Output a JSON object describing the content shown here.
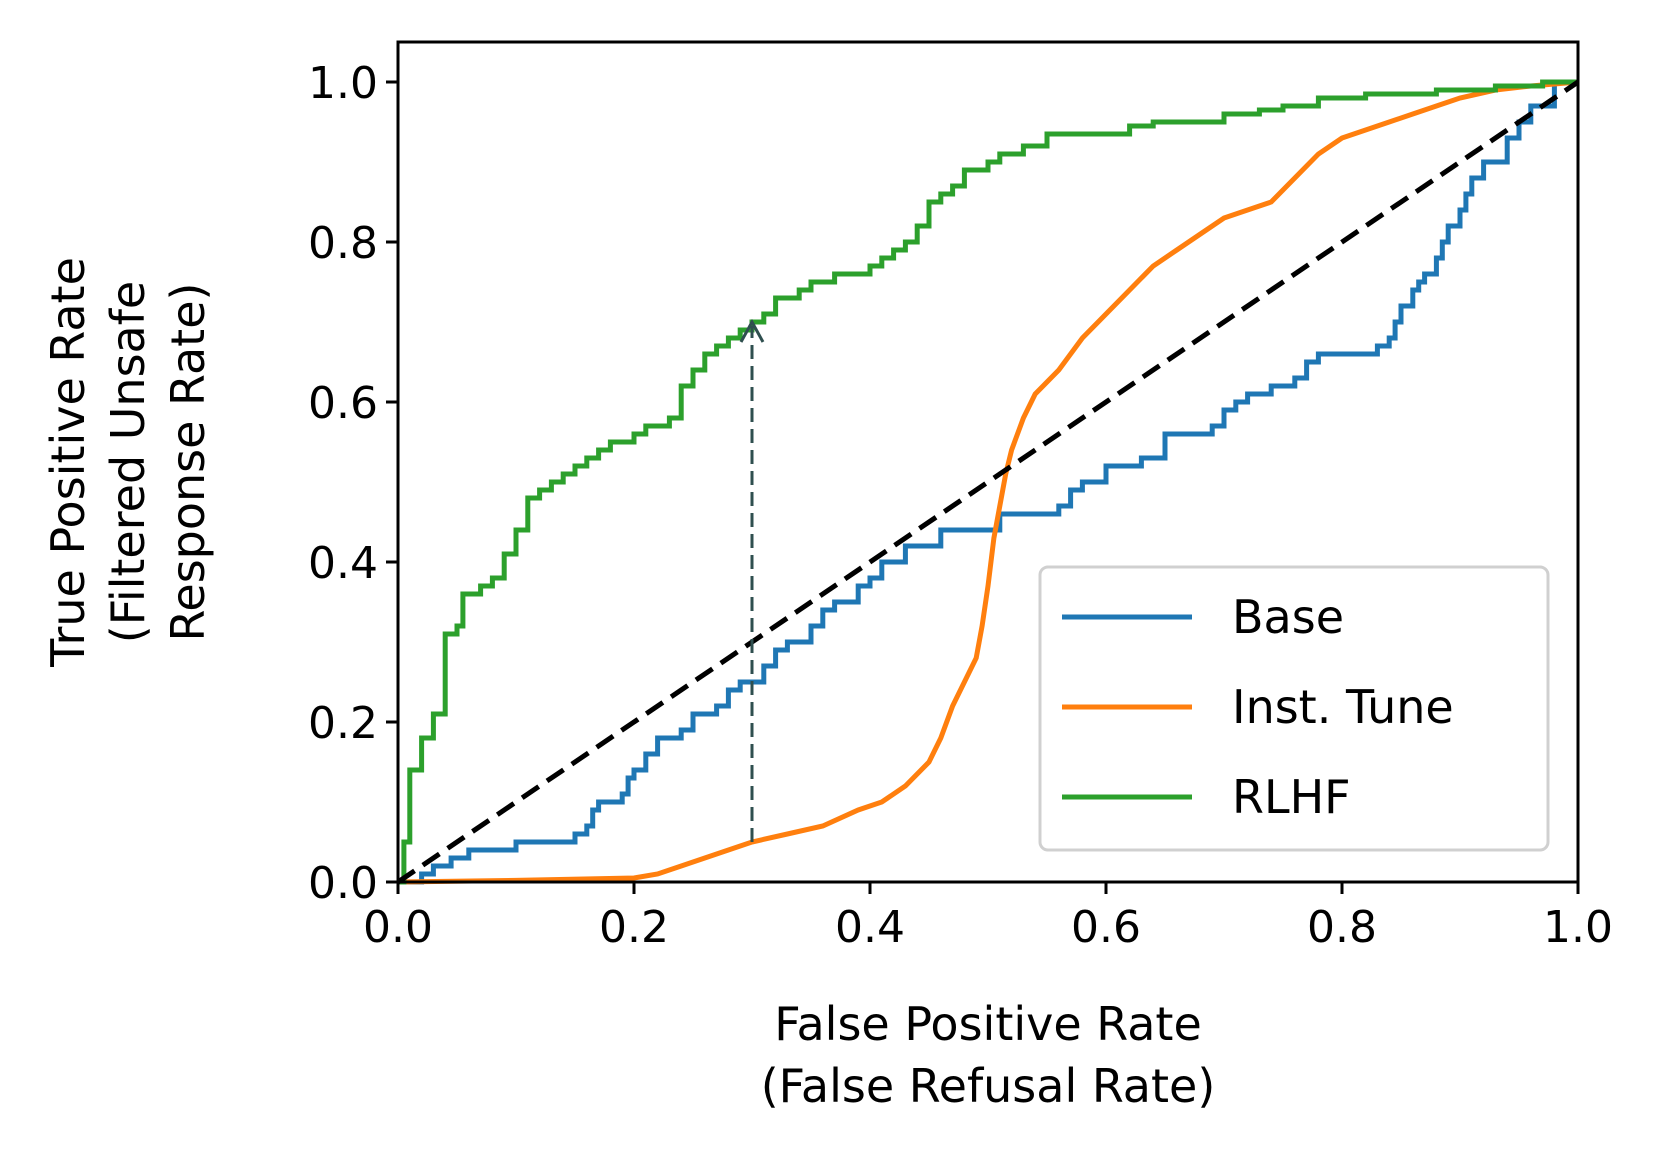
{
  "chart_data": {
    "type": "line",
    "title": "",
    "xlabel": [
      "False Positive Rate",
      "(False Refusal Rate)"
    ],
    "ylabel": [
      "True Positive Rate",
      "(Filtered Unsafe",
      "Response Rate)"
    ],
    "xlim": [
      0,
      1
    ],
    "ylim": [
      0,
      1.05
    ],
    "xticks": [
      "0.0",
      "0.2",
      "0.4",
      "0.6",
      "0.8",
      "1.0"
    ],
    "yticks": [
      "0.0",
      "0.2",
      "0.4",
      "0.6",
      "0.8",
      "1.0"
    ],
    "grid": false,
    "legend_position": "lower-right",
    "series": [
      {
        "name": "Base",
        "color": "#1f77b4",
        "step": true,
        "points": [
          [
            0,
            0
          ],
          [
            0.02,
            0
          ],
          [
            0.02,
            0.01
          ],
          [
            0.03,
            0.01
          ],
          [
            0.03,
            0.02
          ],
          [
            0.045,
            0.02
          ],
          [
            0.045,
            0.03
          ],
          [
            0.06,
            0.03
          ],
          [
            0.06,
            0.04
          ],
          [
            0.1,
            0.04
          ],
          [
            0.1,
            0.05
          ],
          [
            0.15,
            0.05
          ],
          [
            0.15,
            0.06
          ],
          [
            0.16,
            0.06
          ],
          [
            0.16,
            0.07
          ],
          [
            0.165,
            0.07
          ],
          [
            0.165,
            0.09
          ],
          [
            0.17,
            0.09
          ],
          [
            0.17,
            0.1
          ],
          [
            0.19,
            0.1
          ],
          [
            0.19,
            0.11
          ],
          [
            0.195,
            0.11
          ],
          [
            0.195,
            0.13
          ],
          [
            0.2,
            0.13
          ],
          [
            0.2,
            0.14
          ],
          [
            0.21,
            0.14
          ],
          [
            0.21,
            0.16
          ],
          [
            0.22,
            0.16
          ],
          [
            0.22,
            0.18
          ],
          [
            0.24,
            0.18
          ],
          [
            0.24,
            0.19
          ],
          [
            0.25,
            0.19
          ],
          [
            0.25,
            0.21
          ],
          [
            0.27,
            0.21
          ],
          [
            0.27,
            0.22
          ],
          [
            0.28,
            0.22
          ],
          [
            0.28,
            0.24
          ],
          [
            0.29,
            0.24
          ],
          [
            0.29,
            0.25
          ],
          [
            0.31,
            0.25
          ],
          [
            0.31,
            0.27
          ],
          [
            0.32,
            0.27
          ],
          [
            0.32,
            0.29
          ],
          [
            0.33,
            0.29
          ],
          [
            0.33,
            0.3
          ],
          [
            0.35,
            0.3
          ],
          [
            0.35,
            0.32
          ],
          [
            0.36,
            0.32
          ],
          [
            0.36,
            0.34
          ],
          [
            0.37,
            0.34
          ],
          [
            0.37,
            0.35
          ],
          [
            0.39,
            0.35
          ],
          [
            0.39,
            0.37
          ],
          [
            0.4,
            0.37
          ],
          [
            0.4,
            0.38
          ],
          [
            0.41,
            0.38
          ],
          [
            0.41,
            0.4
          ],
          [
            0.43,
            0.4
          ],
          [
            0.43,
            0.42
          ],
          [
            0.46,
            0.42
          ],
          [
            0.46,
            0.44
          ],
          [
            0.51,
            0.44
          ],
          [
            0.51,
            0.46
          ],
          [
            0.56,
            0.46
          ],
          [
            0.56,
            0.47
          ],
          [
            0.57,
            0.47
          ],
          [
            0.57,
            0.49
          ],
          [
            0.58,
            0.49
          ],
          [
            0.58,
            0.5
          ],
          [
            0.6,
            0.5
          ],
          [
            0.6,
            0.52
          ],
          [
            0.63,
            0.52
          ],
          [
            0.63,
            0.53
          ],
          [
            0.65,
            0.53
          ],
          [
            0.65,
            0.56
          ],
          [
            0.69,
            0.56
          ],
          [
            0.69,
            0.57
          ],
          [
            0.7,
            0.57
          ],
          [
            0.7,
            0.59
          ],
          [
            0.71,
            0.59
          ],
          [
            0.71,
            0.6
          ],
          [
            0.72,
            0.6
          ],
          [
            0.72,
            0.61
          ],
          [
            0.74,
            0.61
          ],
          [
            0.74,
            0.62
          ],
          [
            0.76,
            0.62
          ],
          [
            0.76,
            0.63
          ],
          [
            0.77,
            0.63
          ],
          [
            0.77,
            0.65
          ],
          [
            0.78,
            0.65
          ],
          [
            0.78,
            0.66
          ],
          [
            0.83,
            0.66
          ],
          [
            0.83,
            0.67
          ],
          [
            0.84,
            0.67
          ],
          [
            0.84,
            0.68
          ],
          [
            0.845,
            0.68
          ],
          [
            0.845,
            0.7
          ],
          [
            0.85,
            0.7
          ],
          [
            0.85,
            0.72
          ],
          [
            0.86,
            0.72
          ],
          [
            0.86,
            0.74
          ],
          [
            0.865,
            0.74
          ],
          [
            0.865,
            0.75
          ],
          [
            0.87,
            0.75
          ],
          [
            0.87,
            0.76
          ],
          [
            0.88,
            0.76
          ],
          [
            0.88,
            0.78
          ],
          [
            0.885,
            0.78
          ],
          [
            0.885,
            0.8
          ],
          [
            0.89,
            0.8
          ],
          [
            0.89,
            0.82
          ],
          [
            0.9,
            0.82
          ],
          [
            0.9,
            0.84
          ],
          [
            0.905,
            0.84
          ],
          [
            0.905,
            0.86
          ],
          [
            0.91,
            0.86
          ],
          [
            0.91,
            0.88
          ],
          [
            0.92,
            0.88
          ],
          [
            0.92,
            0.9
          ],
          [
            0.94,
            0.9
          ],
          [
            0.94,
            0.93
          ],
          [
            0.95,
            0.93
          ],
          [
            0.95,
            0.95
          ],
          [
            0.96,
            0.95
          ],
          [
            0.96,
            0.97
          ],
          [
            0.98,
            0.97
          ],
          [
            0.98,
            1.0
          ],
          [
            1.0,
            1.0
          ]
        ]
      },
      {
        "name": "Inst. Tune",
        "color": "#ff7f0e",
        "step": false,
        "points": [
          [
            0,
            0
          ],
          [
            0.1,
            0.002
          ],
          [
            0.2,
            0.005
          ],
          [
            0.22,
            0.01
          ],
          [
            0.24,
            0.02
          ],
          [
            0.26,
            0.03
          ],
          [
            0.28,
            0.04
          ],
          [
            0.3,
            0.05
          ],
          [
            0.33,
            0.06
          ],
          [
            0.36,
            0.07
          ],
          [
            0.39,
            0.09
          ],
          [
            0.41,
            0.1
          ],
          [
            0.43,
            0.12
          ],
          [
            0.45,
            0.15
          ],
          [
            0.46,
            0.18
          ],
          [
            0.47,
            0.22
          ],
          [
            0.48,
            0.25
          ],
          [
            0.49,
            0.28
          ],
          [
            0.495,
            0.32
          ],
          [
            0.5,
            0.37
          ],
          [
            0.505,
            0.43
          ],
          [
            0.51,
            0.47
          ],
          [
            0.515,
            0.51
          ],
          [
            0.52,
            0.54
          ],
          [
            0.53,
            0.58
          ],
          [
            0.54,
            0.61
          ],
          [
            0.56,
            0.64
          ],
          [
            0.58,
            0.68
          ],
          [
            0.6,
            0.71
          ],
          [
            0.62,
            0.74
          ],
          [
            0.64,
            0.77
          ],
          [
            0.66,
            0.79
          ],
          [
            0.68,
            0.81
          ],
          [
            0.7,
            0.83
          ],
          [
            0.72,
            0.84
          ],
          [
            0.74,
            0.85
          ],
          [
            0.76,
            0.88
          ],
          [
            0.78,
            0.91
          ],
          [
            0.8,
            0.93
          ],
          [
            0.82,
            0.94
          ],
          [
            0.84,
            0.95
          ],
          [
            0.86,
            0.96
          ],
          [
            0.88,
            0.97
          ],
          [
            0.9,
            0.98
          ],
          [
            0.93,
            0.99
          ],
          [
            0.96,
            0.995
          ],
          [
            1.0,
            1.0
          ]
        ]
      },
      {
        "name": "RLHF",
        "color": "#2ca02c",
        "step": true,
        "points": [
          [
            0,
            0
          ],
          [
            0.005,
            0
          ],
          [
            0.005,
            0.05
          ],
          [
            0.01,
            0.05
          ],
          [
            0.01,
            0.14
          ],
          [
            0.02,
            0.14
          ],
          [
            0.02,
            0.18
          ],
          [
            0.03,
            0.18
          ],
          [
            0.03,
            0.21
          ],
          [
            0.04,
            0.21
          ],
          [
            0.04,
            0.31
          ],
          [
            0.05,
            0.31
          ],
          [
            0.05,
            0.32
          ],
          [
            0.055,
            0.32
          ],
          [
            0.055,
            0.36
          ],
          [
            0.07,
            0.36
          ],
          [
            0.07,
            0.37
          ],
          [
            0.08,
            0.37
          ],
          [
            0.08,
            0.38
          ],
          [
            0.09,
            0.38
          ],
          [
            0.09,
            0.41
          ],
          [
            0.1,
            0.41
          ],
          [
            0.1,
            0.44
          ],
          [
            0.11,
            0.44
          ],
          [
            0.11,
            0.48
          ],
          [
            0.12,
            0.48
          ],
          [
            0.12,
            0.49
          ],
          [
            0.13,
            0.49
          ],
          [
            0.13,
            0.5
          ],
          [
            0.14,
            0.5
          ],
          [
            0.14,
            0.51
          ],
          [
            0.15,
            0.51
          ],
          [
            0.15,
            0.52
          ],
          [
            0.16,
            0.52
          ],
          [
            0.16,
            0.53
          ],
          [
            0.17,
            0.53
          ],
          [
            0.17,
            0.54
          ],
          [
            0.18,
            0.54
          ],
          [
            0.18,
            0.55
          ],
          [
            0.2,
            0.55
          ],
          [
            0.2,
            0.56
          ],
          [
            0.21,
            0.56
          ],
          [
            0.21,
            0.57
          ],
          [
            0.23,
            0.57
          ],
          [
            0.23,
            0.58
          ],
          [
            0.24,
            0.58
          ],
          [
            0.24,
            0.62
          ],
          [
            0.25,
            0.62
          ],
          [
            0.25,
            0.64
          ],
          [
            0.26,
            0.64
          ],
          [
            0.26,
            0.66
          ],
          [
            0.27,
            0.66
          ],
          [
            0.27,
            0.67
          ],
          [
            0.28,
            0.67
          ],
          [
            0.28,
            0.68
          ],
          [
            0.29,
            0.68
          ],
          [
            0.29,
            0.69
          ],
          [
            0.3,
            0.69
          ],
          [
            0.3,
            0.7
          ],
          [
            0.31,
            0.7
          ],
          [
            0.31,
            0.71
          ],
          [
            0.32,
            0.71
          ],
          [
            0.32,
            0.73
          ],
          [
            0.34,
            0.73
          ],
          [
            0.34,
            0.74
          ],
          [
            0.35,
            0.74
          ],
          [
            0.35,
            0.75
          ],
          [
            0.37,
            0.75
          ],
          [
            0.37,
            0.76
          ],
          [
            0.4,
            0.76
          ],
          [
            0.4,
            0.77
          ],
          [
            0.41,
            0.77
          ],
          [
            0.41,
            0.78
          ],
          [
            0.42,
            0.78
          ],
          [
            0.42,
            0.79
          ],
          [
            0.43,
            0.79
          ],
          [
            0.43,
            0.8
          ],
          [
            0.44,
            0.8
          ],
          [
            0.44,
            0.82
          ],
          [
            0.45,
            0.82
          ],
          [
            0.45,
            0.85
          ],
          [
            0.46,
            0.85
          ],
          [
            0.46,
            0.86
          ],
          [
            0.47,
            0.86
          ],
          [
            0.47,
            0.87
          ],
          [
            0.48,
            0.87
          ],
          [
            0.48,
            0.89
          ],
          [
            0.5,
            0.89
          ],
          [
            0.5,
            0.9
          ],
          [
            0.51,
            0.9
          ],
          [
            0.51,
            0.91
          ],
          [
            0.53,
            0.91
          ],
          [
            0.53,
            0.92
          ],
          [
            0.55,
            0.92
          ],
          [
            0.55,
            0.935
          ],
          [
            0.62,
            0.935
          ],
          [
            0.62,
            0.945
          ],
          [
            0.64,
            0.945
          ],
          [
            0.64,
            0.95
          ],
          [
            0.7,
            0.95
          ],
          [
            0.7,
            0.96
          ],
          [
            0.73,
            0.96
          ],
          [
            0.73,
            0.965
          ],
          [
            0.75,
            0.965
          ],
          [
            0.75,
            0.97
          ],
          [
            0.78,
            0.97
          ],
          [
            0.78,
            0.98
          ],
          [
            0.82,
            0.98
          ],
          [
            0.82,
            0.985
          ],
          [
            0.88,
            0.985
          ],
          [
            0.88,
            0.99
          ],
          [
            0.93,
            0.99
          ],
          [
            0.93,
            0.995
          ],
          [
            0.97,
            0.995
          ],
          [
            0.97,
            1.0
          ],
          [
            1.0,
            1.0
          ]
        ]
      }
    ],
    "reference_line": {
      "color": "#000000",
      "style": "dashed",
      "points": [
        [
          0,
          0
        ],
        [
          1,
          1
        ]
      ]
    },
    "annotation": {
      "type": "arrow",
      "color": "#2f4f4f",
      "style": "dashed",
      "from": [
        0.3,
        0.05
      ],
      "to": [
        0.3,
        0.7
      ]
    }
  }
}
